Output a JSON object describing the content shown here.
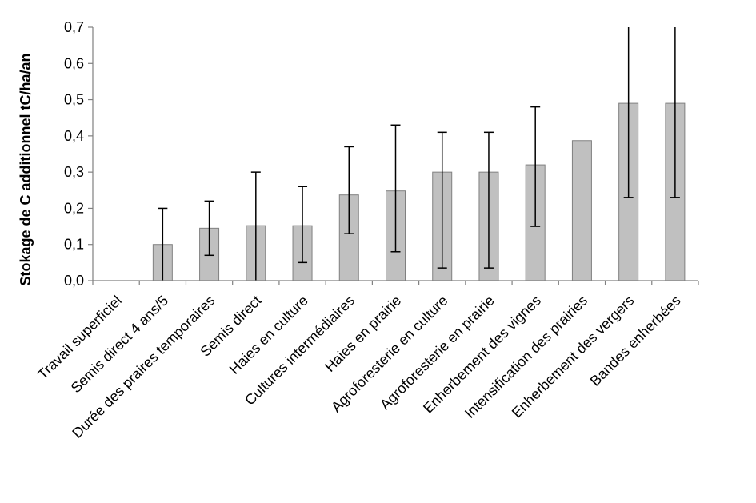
{
  "chart_data": {
    "type": "bar",
    "title": "",
    "xlabel": "",
    "ylabel": "Stokage de C additionnel tC/ha/an",
    "ylim": [
      0,
      0.7
    ],
    "yticks": [
      "0,0",
      "0,1",
      "0,2",
      "0,3",
      "0,4",
      "0,5",
      "0,6",
      "0,7"
    ],
    "ytick_values": [
      0,
      0.1,
      0.2,
      0.3,
      0.4,
      0.5,
      0.6,
      0.7
    ],
    "grid": false,
    "legend": "none",
    "bar_color": "#c0c0c0",
    "bar_stroke": "#808080",
    "categories": [
      "Travail superficiel",
      "Semis direct 4 ans/5",
      "Durée des praires temporaires",
      "Semis direct",
      "Haies en culture",
      "Cultures intermédiaires",
      "Haies en prairie",
      "Agroforesterie en culture",
      "Agroforesterie en prairie",
      "Enherbement des vignes",
      "Intensification des prairies",
      "Enherbement des vergers",
      "Bandes enherbées"
    ],
    "values": [
      0,
      0.1,
      0.145,
      0.152,
      0.152,
      0.237,
      0.248,
      0.3,
      0.3,
      0.32,
      0.387,
      0.49,
      0.49
    ],
    "error_low": [
      null,
      0,
      0.07,
      0,
      0.05,
      0.13,
      0.08,
      0.035,
      0.035,
      0.15,
      null,
      0.23,
      0.23
    ],
    "error_high": [
      null,
      0.2,
      0.22,
      0.3,
      0.26,
      0.37,
      0.43,
      0.41,
      0.41,
      0.48,
      null,
      0.7,
      0.7
    ]
  }
}
